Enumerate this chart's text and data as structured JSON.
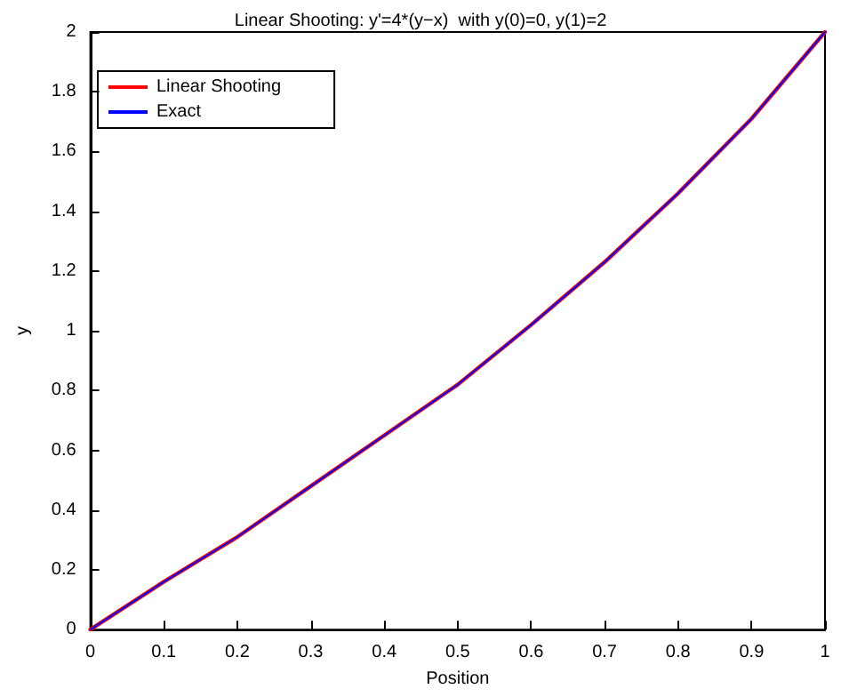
{
  "chart_data": {
    "type": "line",
    "title": "Linear Shooting: y'=4*(y−x)  with y(0)=0, y(1)=2",
    "xlabel": "Position",
    "ylabel": "y",
    "x": [
      0,
      0.1,
      0.2,
      0.3,
      0.4,
      0.5,
      0.6,
      0.7,
      0.8,
      0.9,
      1
    ],
    "series": [
      {
        "name": "Linear Shooting",
        "color": "#ff0000",
        "values": [
          0,
          0.16,
          0.31,
          0.48,
          0.65,
          0.82,
          1.02,
          1.23,
          1.46,
          1.71,
          2
        ]
      },
      {
        "name": "Exact",
        "color": "#0000ff",
        "values": [
          0,
          0.16,
          0.31,
          0.48,
          0.65,
          0.82,
          1.02,
          1.23,
          1.46,
          1.71,
          2
        ]
      }
    ],
    "xlim": [
      0,
      1
    ],
    "xticks": [
      0,
      0.1,
      0.2,
      0.3,
      0.4,
      0.5,
      0.6,
      0.7,
      0.8,
      0.9,
      1
    ],
    "ylim": [
      0,
      2
    ],
    "yticks": [
      0,
      0.2,
      0.4,
      0.6,
      0.8,
      1,
      1.2,
      1.4,
      1.6,
      1.8,
      2
    ],
    "grid": false,
    "legend": "top left",
    "marker": "none",
    "line_style": "solid"
  }
}
